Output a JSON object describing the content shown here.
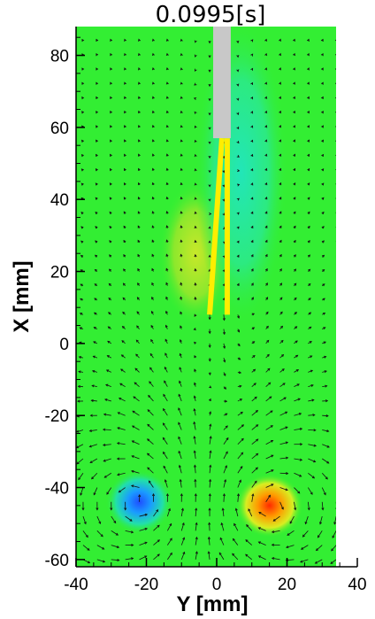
{
  "chart_data": {
    "type": "heatmap",
    "title": "0.0995[s]",
    "xlabel": "Y [mm]",
    "ylabel": "X [mm]",
    "xlim": [
      -40,
      40
    ],
    "ylim": [
      -62,
      88
    ],
    "xticks": [
      -40,
      -20,
      0,
      20,
      40
    ],
    "yticks": [
      -60,
      -40,
      -20,
      0,
      20,
      40,
      60,
      80
    ],
    "field": "vorticity contour with velocity vectors",
    "background_color": "#33ee33",
    "vortices": [
      {
        "y": -22,
        "x": -44,
        "sign": "negative",
        "color": "#1f5cff"
      },
      {
        "y": 15,
        "x": -45,
        "sign": "positive",
        "color": "#ff3300"
      }
    ],
    "shear_layers": [
      {
        "side": "left",
        "color": "#b6e82a",
        "y_range": [
          -10,
          -2
        ],
        "x_range": [
          5,
          45
        ]
      },
      {
        "side": "right",
        "color": "#2ee8a6",
        "y_range": [
          2,
          12
        ],
        "x_range": [
          5,
          90
        ]
      }
    ],
    "nozzle": {
      "color": "#c8c8c8",
      "y_range": [
        -1,
        4
      ],
      "x_top": 88,
      "x_bottom": 57
    },
    "flaps": {
      "color": "#ffee00",
      "tip_left": [
        -2,
        8
      ],
      "tip_right": [
        3,
        8
      ],
      "root": [
        1.5,
        57
      ]
    }
  }
}
